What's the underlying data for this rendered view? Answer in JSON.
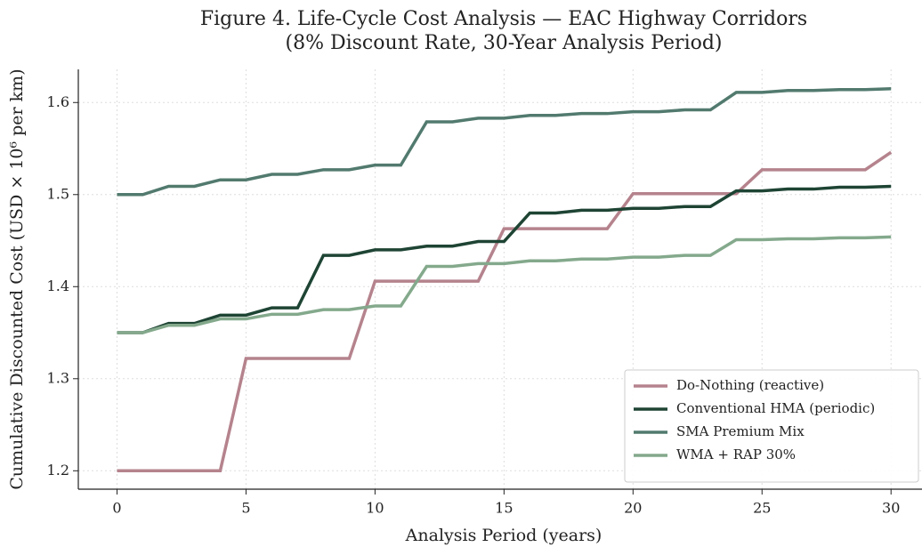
{
  "chart_data": {
    "type": "line",
    "title": "Figure 4.  Life-Cycle Cost Analysis — EAC Highway Corridors",
    "subtitle": "(8% Discount Rate, 30-Year Analysis Period)",
    "x_label": "Analysis Period (years)",
    "y_label": "Cumulative Discounted Cost (USD × 10⁶ per km)",
    "x": [
      0,
      1,
      2,
      3,
      4,
      5,
      6,
      7,
      8,
      9,
      10,
      11,
      12,
      13,
      14,
      15,
      16,
      17,
      18,
      19,
      20,
      21,
      22,
      23,
      24,
      25,
      26,
      27,
      28,
      29,
      30
    ],
    "series": [
      {
        "name": "Do-Nothing (reactive)",
        "color": "#b5838d",
        "values": [
          1.2,
          1.2,
          1.2,
          1.2,
          1.2,
          1.322,
          1.322,
          1.322,
          1.322,
          1.322,
          1.406,
          1.406,
          1.406,
          1.406,
          1.406,
          1.463,
          1.463,
          1.463,
          1.463,
          1.463,
          1.501,
          1.501,
          1.501,
          1.501,
          1.501,
          1.527,
          1.527,
          1.527,
          1.527,
          1.527,
          1.546
        ]
      },
      {
        "name": "Conventional HMA (periodic)",
        "color": "#1e4434",
        "values": [
          1.35,
          1.35,
          1.36,
          1.36,
          1.369,
          1.369,
          1.377,
          1.377,
          1.434,
          1.434,
          1.44,
          1.44,
          1.444,
          1.444,
          1.449,
          1.449,
          1.48,
          1.48,
          1.483,
          1.483,
          1.485,
          1.485,
          1.487,
          1.487,
          1.504,
          1.504,
          1.506,
          1.506,
          1.508,
          1.508,
          1.509
        ]
      },
      {
        "name": "SMA Premium Mix",
        "color": "#527a6e",
        "values": [
          1.5,
          1.5,
          1.509,
          1.509,
          1.516,
          1.516,
          1.522,
          1.522,
          1.527,
          1.527,
          1.532,
          1.532,
          1.579,
          1.579,
          1.583,
          1.583,
          1.586,
          1.586,
          1.588,
          1.588,
          1.59,
          1.59,
          1.592,
          1.592,
          1.611,
          1.611,
          1.613,
          1.613,
          1.614,
          1.614,
          1.615
        ]
      },
      {
        "name": "WMA + RAP 30%",
        "color": "#84a98c",
        "values": [
          1.35,
          1.35,
          1.358,
          1.358,
          1.365,
          1.365,
          1.37,
          1.37,
          1.375,
          1.375,
          1.379,
          1.379,
          1.422,
          1.422,
          1.425,
          1.425,
          1.428,
          1.428,
          1.43,
          1.43,
          1.432,
          1.432,
          1.434,
          1.434,
          1.451,
          1.451,
          1.452,
          1.452,
          1.453,
          1.453,
          1.454
        ]
      }
    ],
    "xlim": [
      -1.5,
      31.2
    ],
    "ylim": [
      1.18,
      1.636
    ],
    "xticks": [
      0,
      5,
      10,
      15,
      20,
      25,
      30
    ],
    "yticks": [
      1.2,
      1.3,
      1.4,
      1.5,
      1.6
    ],
    "grid": true,
    "legend": "lower right"
  }
}
